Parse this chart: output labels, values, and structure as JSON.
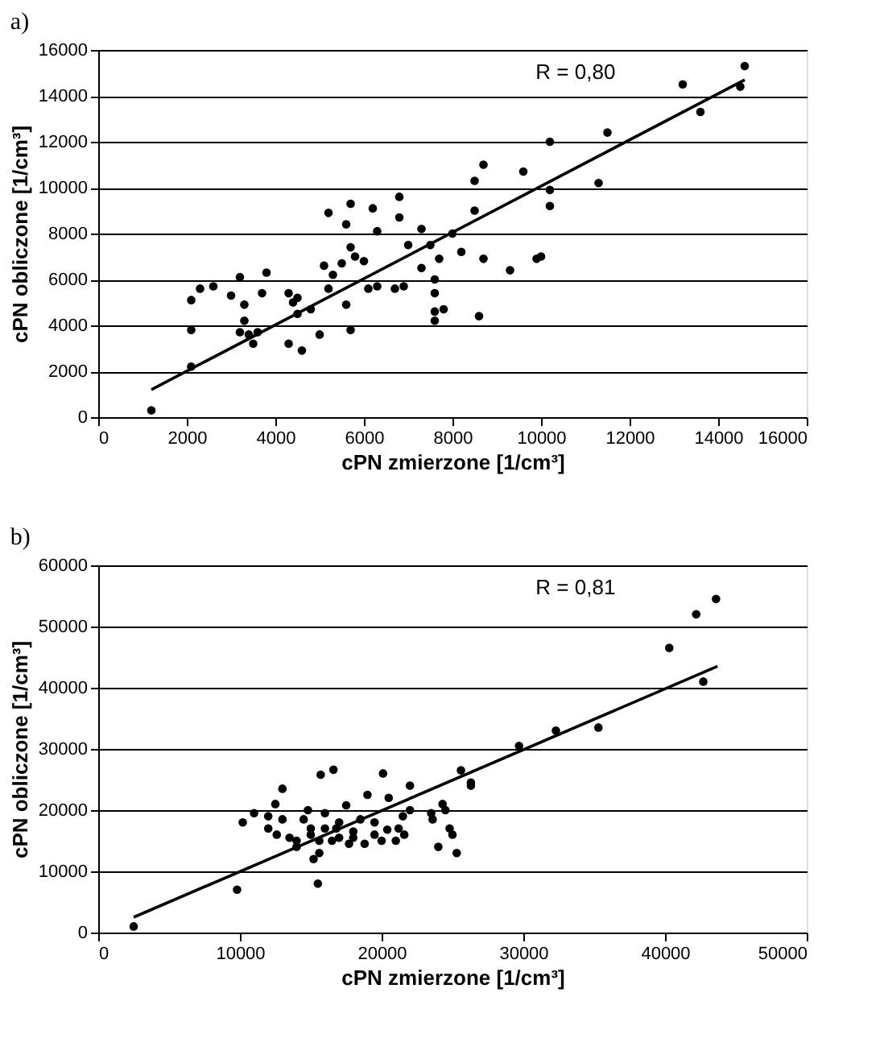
{
  "chart_data": [
    {
      "type": "scatter",
      "title": "a)",
      "xlabel": "cPN zmierzone [1/cm³]",
      "ylabel": "cPN obliczone [1/cm³]",
      "annotations": [
        "R = 0,80"
      ],
      "xlim": [
        0,
        16000
      ],
      "ylim": [
        0,
        16000
      ],
      "xticks": [
        0,
        2000,
        4000,
        6000,
        8000,
        10000,
        12000,
        14000,
        16000
      ],
      "yticks": [
        0,
        2000,
        4000,
        6000,
        8000,
        10000,
        12000,
        14000,
        16000
      ],
      "grid": "y",
      "legend": false,
      "marker": "circle",
      "series": [
        {
          "color": "#000000",
          "x": [
            1200,
            2100,
            2100,
            2100,
            2300,
            2600,
            3000,
            3200,
            3200,
            3300,
            3300,
            3400,
            3500,
            3600,
            3700,
            3800,
            4300,
            4300,
            4400,
            4500,
            4500,
            4600,
            4800,
            5000,
            5100,
            5200,
            5200,
            5300,
            5500,
            5600,
            5600,
            5700,
            5700,
            5700,
            5800,
            6000,
            6100,
            6200,
            6300,
            6300,
            6700,
            6800,
            6800,
            6900,
            7000,
            7300,
            7300,
            7500,
            7600,
            7600,
            7600,
            7600,
            7700,
            7800,
            8000,
            8200,
            8500,
            8500,
            8600,
            8700,
            8700,
            9300,
            9600,
            9900,
            10000,
            10200,
            10200,
            10200,
            11300,
            11500,
            13200,
            13600,
            14600,
            14500
          ],
          "values": [
            300,
            2200,
            3800,
            5100,
            5600,
            5700,
            5300,
            6100,
            3700,
            4200,
            4900,
            3600,
            3200,
            3700,
            5400,
            6300,
            5400,
            3200,
            5000,
            4500,
            5200,
            2900,
            4700,
            3600,
            6600,
            8900,
            5600,
            6200,
            6700,
            4900,
            8400,
            3800,
            9300,
            7400,
            7000,
            6800,
            5600,
            9100,
            8100,
            5700,
            5600,
            8700,
            9600,
            5700,
            7500,
            8200,
            6500,
            7500,
            6000,
            4200,
            4600,
            5400,
            6900,
            4700,
            8000,
            7200,
            10300,
            9000,
            4400,
            11000,
            6900,
            6400,
            10700,
            6900,
            7000,
            12000,
            9900,
            9200,
            10200,
            12400,
            14500,
            13300,
            15300,
            14400
          ]
        },
        {
          "type": "line",
          "color": "#000000",
          "marker": "none",
          "line_style": "solid",
          "x": [
            1200,
            14600
          ],
          "values": [
            1200,
            14700
          ]
        }
      ]
    },
    {
      "type": "scatter",
      "title": "b)",
      "xlabel": "cPN zmierzone [1/cm³]",
      "ylabel": "cPN obliczone [1/cm³]",
      "annotations": [
        "R = 0,81"
      ],
      "xlim": [
        0,
        50000
      ],
      "ylim": [
        0,
        60000
      ],
      "xticks": [
        0,
        10000,
        20000,
        30000,
        40000,
        50000
      ],
      "yticks": [
        0,
        10000,
        20000,
        30000,
        40000,
        50000,
        60000
      ],
      "grid": "y",
      "legend": false,
      "marker": "circle",
      "series": [
        {
          "color": "#000000",
          "x": [
            2500,
            9800,
            10200,
            11000,
            12000,
            12000,
            12500,
            12600,
            13000,
            13000,
            13500,
            14000,
            14000,
            14500,
            14800,
            15000,
            15000,
            15200,
            15500,
            15600,
            15600,
            15700,
            16000,
            16000,
            16500,
            16600,
            16800,
            17000,
            17000,
            17500,
            17700,
            18000,
            18000,
            18500,
            18800,
            19000,
            19500,
            19500,
            20000,
            20100,
            20400,
            20500,
            21000,
            21200,
            21600,
            21500,
            22000,
            22000,
            23500,
            23600,
            24000,
            24300,
            24500,
            24800,
            25000,
            25300,
            25600,
            26300,
            26300,
            29700,
            32300,
            35300,
            40300,
            42200,
            42700,
            43600
          ],
          "values": [
            1000,
            7000,
            18000,
            19500,
            19000,
            17000,
            21000,
            16000,
            23500,
            18500,
            15500,
            14000,
            15000,
            18500,
            20000,
            17000,
            16000,
            12000,
            8000,
            13000,
            15000,
            25800,
            17000,
            19500,
            15000,
            26600,
            17000,
            15500,
            18000,
            20800,
            14500,
            15500,
            16500,
            18500,
            14500,
            22500,
            16000,
            18000,
            15000,
            26000,
            16800,
            22000,
            15000,
            17000,
            16000,
            19000,
            24000,
            20000,
            19500,
            18500,
            14000,
            21000,
            20000,
            17000,
            16000,
            13000,
            26500,
            24500,
            24000,
            30500,
            33000,
            33500,
            46500,
            52000,
            41000,
            54500
          ]
        },
        {
          "type": "line",
          "color": "#000000",
          "marker": "none",
          "line_style": "solid",
          "x": [
            2500,
            43700
          ],
          "values": [
            2500,
            43500
          ]
        }
      ]
    }
  ]
}
